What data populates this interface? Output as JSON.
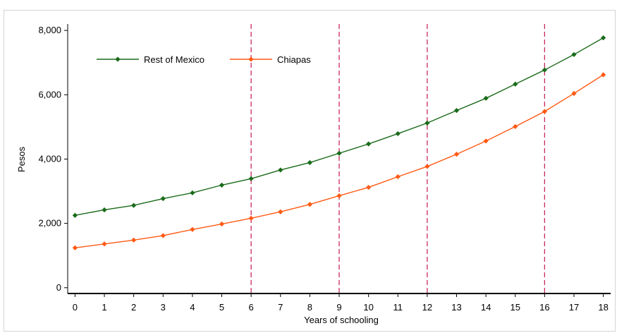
{
  "chart_data": {
    "type": "line",
    "title": "",
    "xlabel": "Years of schooling",
    "ylabel": "Pesos",
    "x": [
      0,
      1,
      2,
      3,
      4,
      5,
      6,
      7,
      8,
      9,
      10,
      11,
      12,
      13,
      14,
      15,
      16,
      17,
      18
    ],
    "xlim": [
      -0.25,
      18.25
    ],
    "ylim": [
      -180,
      8200
    ],
    "yticks": [
      0,
      2000,
      4000,
      6000,
      8000
    ],
    "ytick_labels": [
      "0",
      "2,000",
      "4,000",
      "6,000",
      "8,000"
    ],
    "xtick_labels": [
      "0",
      "1",
      "2",
      "3",
      "4",
      "5",
      "6",
      "7",
      "8",
      "9",
      "10",
      "11",
      "12",
      "13",
      "14",
      "15",
      "16",
      "17",
      "18"
    ],
    "reference_lines_x": [
      6,
      9,
      12,
      16
    ],
    "grid": false,
    "legend_position": "top-left",
    "series": [
      {
        "name": "Rest of Mexico",
        "color": "#1a6b1a",
        "values": [
          2250,
          2420,
          2560,
          2770,
          2950,
          3190,
          3390,
          3660,
          3890,
          4180,
          4470,
          4790,
          5120,
          5510,
          5890,
          6330,
          6770,
          7250,
          7770
        ]
      },
      {
        "name": "Chiapas",
        "color": "#ff5a14",
        "values": [
          1240,
          1360,
          1480,
          1620,
          1810,
          1980,
          2160,
          2360,
          2590,
          2860,
          3120,
          3450,
          3770,
          4150,
          4560,
          5010,
          5480,
          6040,
          6620
        ]
      }
    ],
    "reference_line_color": "#c8285a"
  }
}
